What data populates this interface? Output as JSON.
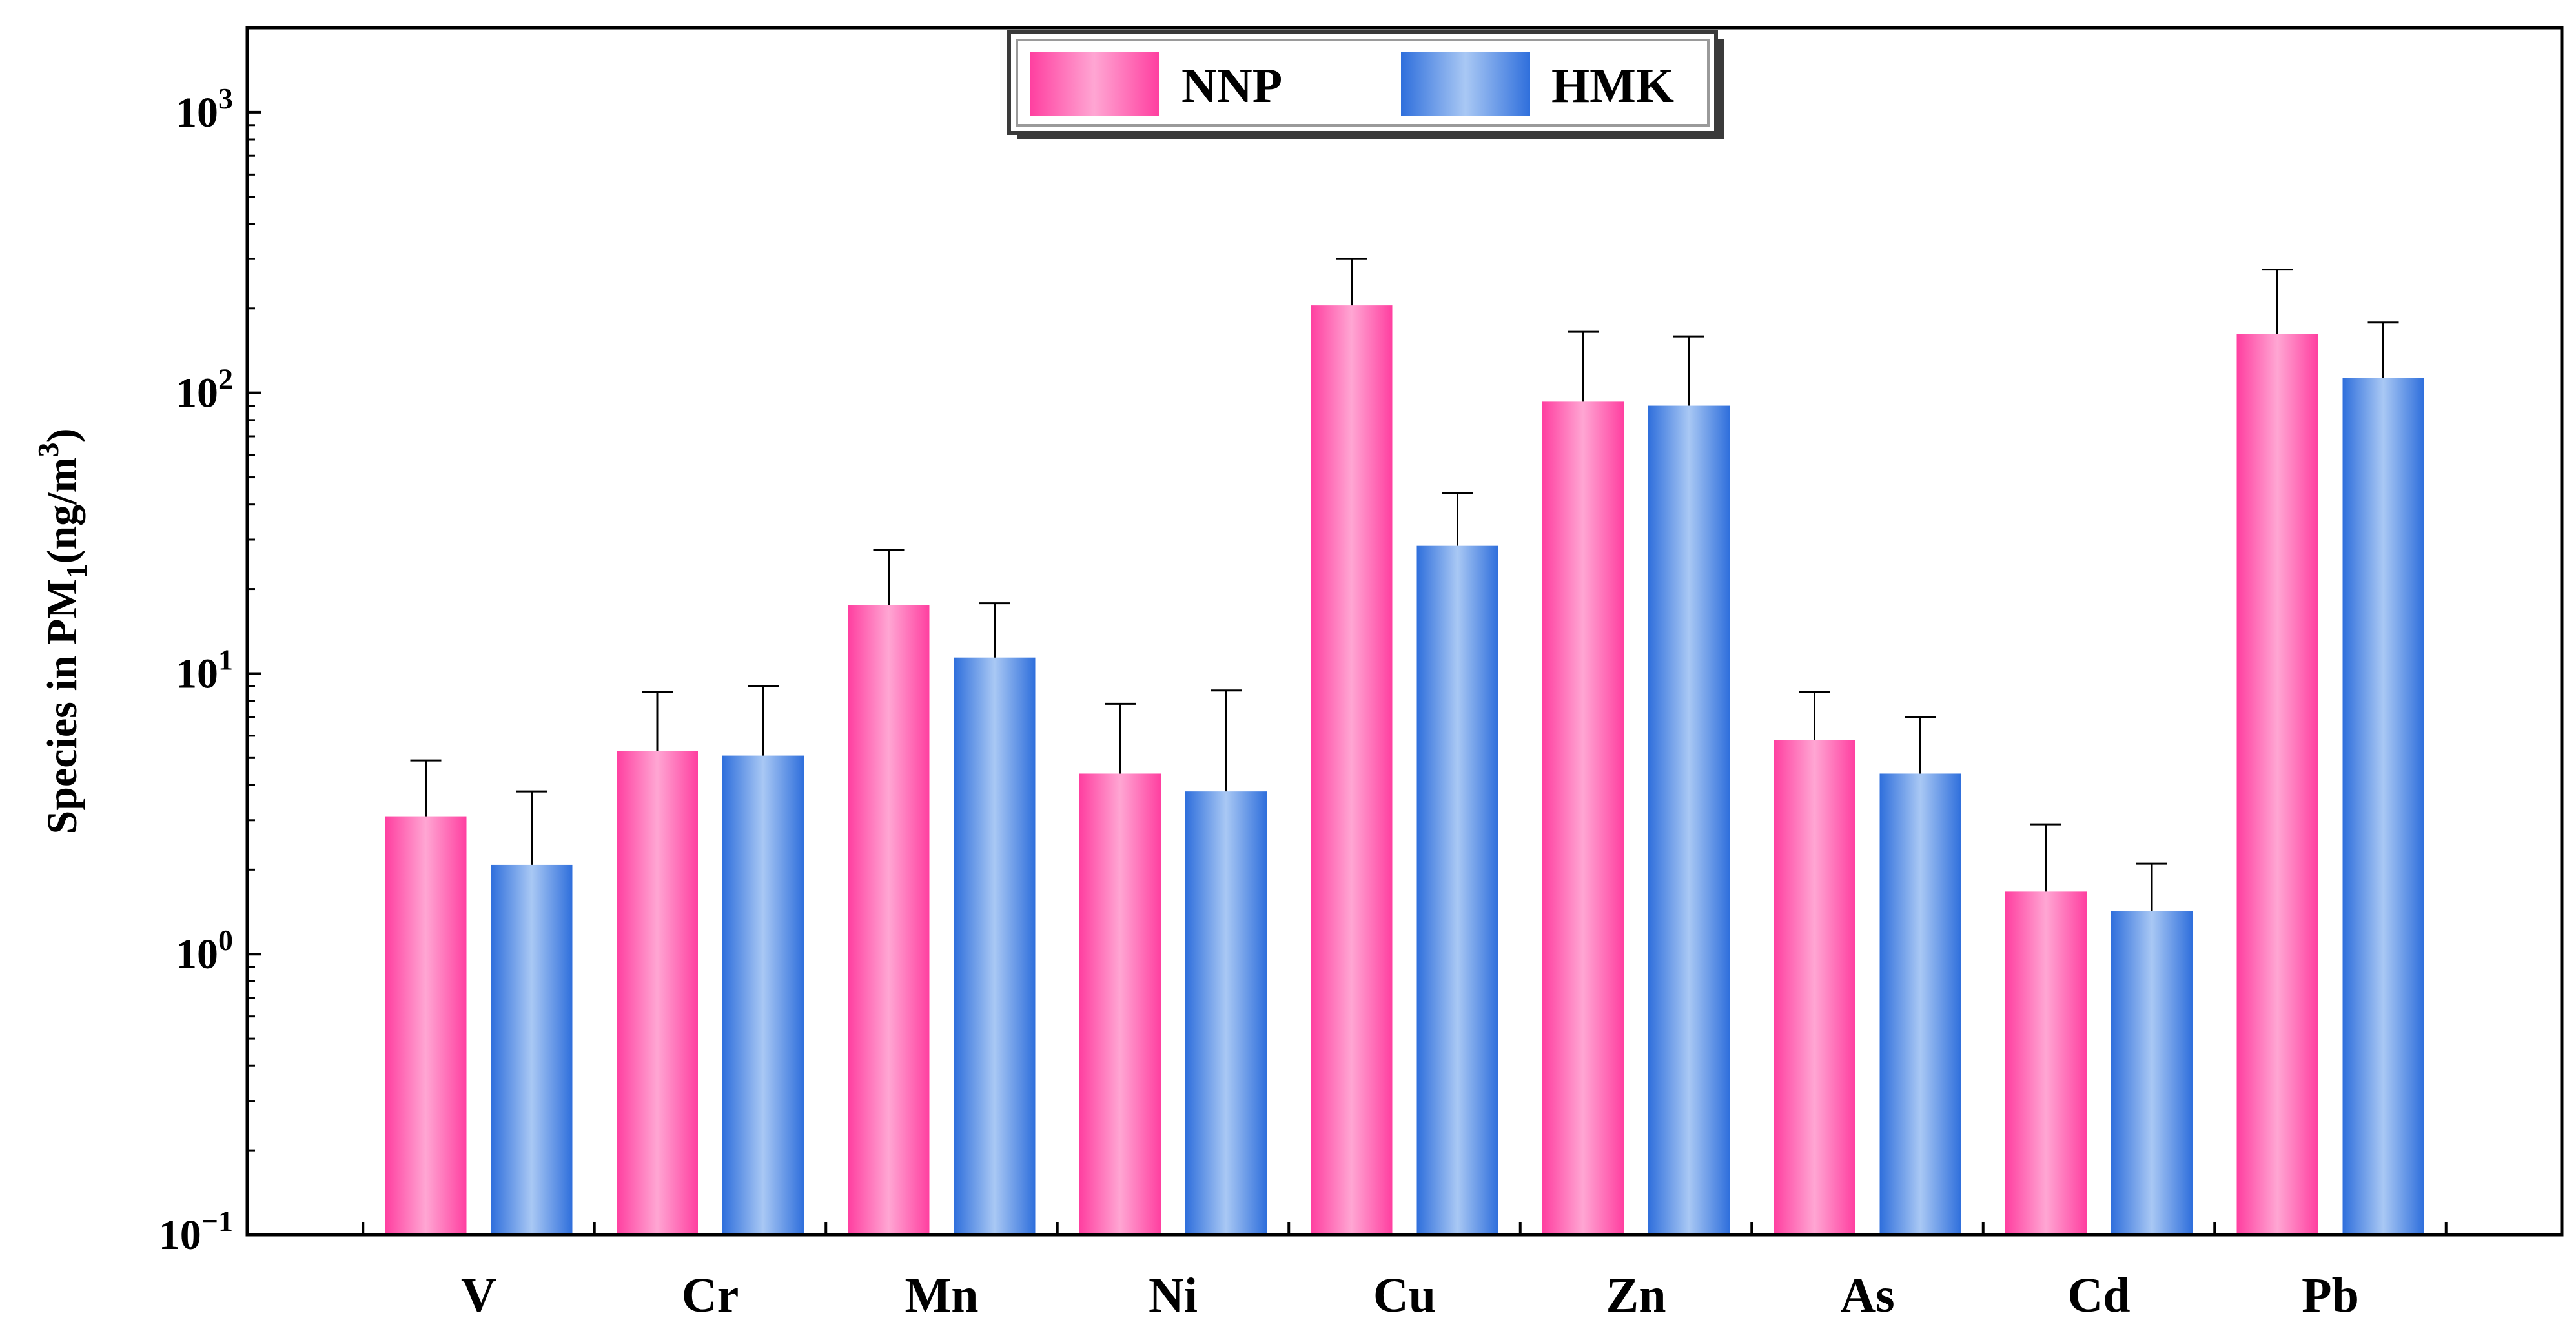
{
  "chart_data": {
    "type": "bar",
    "title": "",
    "xlabel": "",
    "ylabel": "Species in PM1(ng/m3)",
    "ylabel_parts": {
      "pre": "Species in PM",
      "sub": "1",
      "mid": "(ng/m",
      "sup": "3",
      "post": ")"
    },
    "yscale": "log",
    "ylim": [
      0.1,
      2000
    ],
    "y_ticks": [
      {
        "value": 0.1,
        "base": "10",
        "exp": "−1"
      },
      {
        "value": 1,
        "base": "10",
        "exp": "0"
      },
      {
        "value": 10,
        "base": "10",
        "exp": "1"
      },
      {
        "value": 100,
        "base": "10",
        "exp": "2"
      },
      {
        "value": 1000,
        "base": "10",
        "exp": "3"
      }
    ],
    "categories": [
      "V",
      "Cr",
      "Mn",
      "Ni",
      "Cu",
      "Zn",
      "As",
      "Cd",
      "Pb"
    ],
    "series": [
      {
        "name": "NNP",
        "color_dark": "#ff3fa0",
        "color_light": "#ffa6d3",
        "values": [
          3.1,
          5.3,
          17.5,
          4.4,
          205,
          93,
          5.8,
          1.67,
          162
        ],
        "errors": [
          1.8,
          3.3,
          10.0,
          3.4,
          95,
          72,
          2.8,
          1.23,
          113
        ]
      },
      {
        "name": "HMK",
        "color_dark": "#2f6fdc",
        "color_light": "#a9c8f4",
        "values": [
          2.08,
          5.1,
          11.4,
          3.8,
          28.5,
          90,
          4.4,
          1.42,
          113
        ],
        "errors": [
          1.72,
          3.9,
          6.4,
          4.9,
          15.5,
          69,
          2.6,
          0.68,
          65
        ]
      }
    ],
    "legend": {
      "position": "top-center"
    },
    "grid": false
  }
}
